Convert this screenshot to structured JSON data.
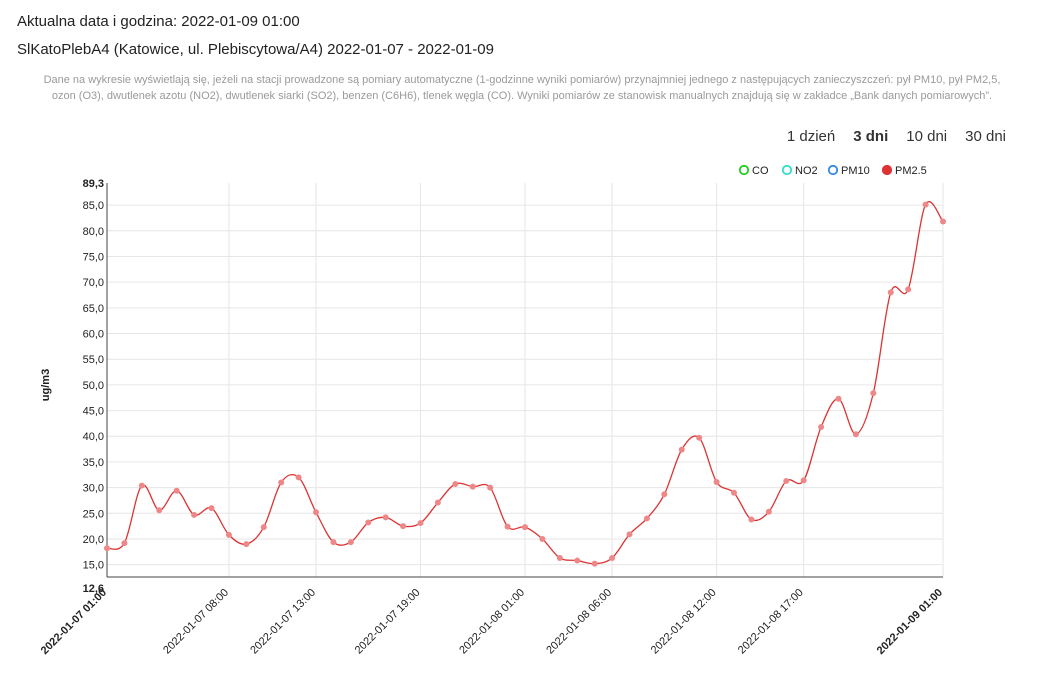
{
  "header": {
    "date_line": "Aktualna data i godzina: 2022-01-09 01:00",
    "station_line": "SlKatoPlebA4 (Katowice, ul. Plebiscytowa/A4) 2022-01-07 - 2022-01-09",
    "note": "Dane na wykresie wyświetlają się, jeżeli na stacji prowadzone są pomiary automatyczne (1-godzinne wyniki pomiarów) przynajmniej jednego z następujących zanieczyszczeń: pył PM10, pył PM2,5, ozon (O3), dwutlenek azotu (NO2), dwutlenek siarki (SO2), benzen (C6H6), tlenek węgla (CO). Wyniki pomiarów ze stanowisk manualnych znajdują się w zakładce „Bank danych pomiarowych”."
  },
  "ranges": [
    {
      "label": "1 dzień",
      "active": false
    },
    {
      "label": "3 dni",
      "active": true
    },
    {
      "label": "10 dni",
      "active": false
    },
    {
      "label": "30 dni",
      "active": false
    }
  ],
  "chart_data": {
    "type": "line",
    "ylabel": "ug/m3",
    "ylim": [
      12.6,
      89.3
    ],
    "y_ticks": [
      "15,0",
      "20,0",
      "25,0",
      "30,0",
      "35,0",
      "40,0",
      "45,0",
      "50,0",
      "55,0",
      "60,0",
      "65,0",
      "70,0",
      "75,0",
      "80,0",
      "85,0"
    ],
    "y_min_label": "12,6",
    "y_max_label": "89,3",
    "x_ticks": [
      {
        "label": "2022-01-07 01:00",
        "hour": 0,
        "bold": true
      },
      {
        "label": "2022-01-07 08:00",
        "hour": 7,
        "bold": false
      },
      {
        "label": "2022-01-07 13:00",
        "hour": 12,
        "bold": false
      },
      {
        "label": "2022-01-07 19:00",
        "hour": 18,
        "bold": false
      },
      {
        "label": "2022-01-08 01:00",
        "hour": 24,
        "bold": false
      },
      {
        "label": "2022-01-08 06:00",
        "hour": 29,
        "bold": false
      },
      {
        "label": "2022-01-08 12:00",
        "hour": 35,
        "bold": false
      },
      {
        "label": "2022-01-08 17:00",
        "hour": 40,
        "bold": false
      },
      {
        "label": "2022-01-09 01:00",
        "hour": 48,
        "bold": true
      }
    ],
    "x_hour_max": 48,
    "legend": [
      {
        "name": "CO",
        "color": "#22cc22",
        "filled": false
      },
      {
        "name": "NO2",
        "color": "#33ddcc",
        "filled": false
      },
      {
        "name": "PM10",
        "color": "#3388dd",
        "filled": false
      },
      {
        "name": "PM2.5",
        "color": "#dd3333",
        "filled": true
      }
    ],
    "series": [
      {
        "name": "PM2.5",
        "color": "#dd3333",
        "values": [
          18.2,
          19.2,
          30.4,
          25.6,
          29.4,
          24.7,
          26.0,
          20.8,
          19.0,
          22.3,
          31.0,
          32.0,
          25.2,
          19.4,
          19.4,
          23.2,
          24.2,
          22.5,
          23.1,
          27.1,
          30.7,
          30.2,
          30.0,
          22.4,
          22.3,
          20.0,
          16.3,
          15.8,
          15.2,
          16.3,
          20.9,
          24.0,
          28.7,
          37.4,
          39.7,
          31.1,
          29.0,
          23.8,
          25.3,
          31.3,
          31.4,
          41.8,
          47.3,
          40.4,
          48.4,
          68.0,
          68.6,
          85.1,
          81.8
        ]
      }
    ]
  }
}
